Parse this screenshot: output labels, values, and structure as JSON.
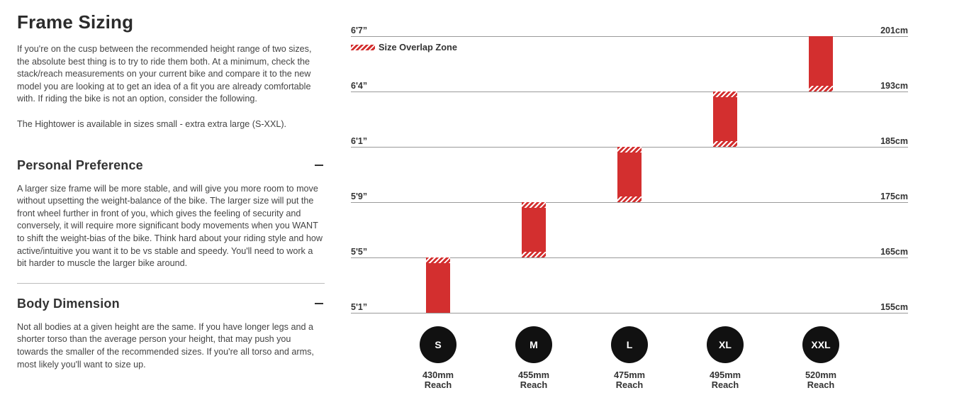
{
  "left": {
    "title": "Frame Sizing",
    "intro": "If you're on the cusp between the recommended height range of two sizes, the absolute best thing is to try to ride them both. At a minimum, check the stack/reach measurements on your current bike and compare it to the new model you are looking at to get an idea of a fit you are already comfortable with. If riding the bike is not an option, consider the following.",
    "availability": "The Hightower is available in sizes small - extra extra large (S-XXL).",
    "sections": [
      {
        "title": "Personal Preference",
        "body": "A larger size frame will be more stable, and will give you more room to move without upsetting the weight-balance of the bike. The larger size will put the front wheel further in front of you, which gives the feeling of security and conversely, it will require more significant body movements when you WANT to shift the weight-bias of the bike. Think hard about your riding style and how active/intuitive you want it to be vs stable and speedy. You'll need to work a bit harder to muscle the larger bike around."
      },
      {
        "title": "Body Dimension",
        "body": "Not all bodies at a given height are the same. If you have longer legs and a shorter torso than the average person your height, that may push you towards the smaller of the recommended sizes. If you're all torso and arms, most likely you'll want to size up."
      }
    ]
  },
  "chart_data": {
    "type": "bar",
    "legend": "Size Overlap Zone",
    "levels": [
      {
        "imperial": "6'7”",
        "cm": "201cm",
        "value": 201
      },
      {
        "imperial": "6'4”",
        "cm": "193cm",
        "value": 193
      },
      {
        "imperial": "6'1”",
        "cm": "185cm",
        "value": 185
      },
      {
        "imperial": "5'9”",
        "cm": "175cm",
        "value": 175
      },
      {
        "imperial": "5'5”",
        "cm": "165cm",
        "value": 165
      },
      {
        "imperial": "5'1”",
        "cm": "155cm",
        "value": 155
      }
    ],
    "sizes": [
      {
        "size": "S",
        "reach": "430mm",
        "reach_label": "Reach",
        "min_cm": 155,
        "max_cm": 165,
        "overlap_top": true,
        "overlap_bottom": false
      },
      {
        "size": "M",
        "reach": "455mm",
        "reach_label": "Reach",
        "min_cm": 165,
        "max_cm": 175,
        "overlap_top": true,
        "overlap_bottom": true
      },
      {
        "size": "L",
        "reach": "475mm",
        "reach_label": "Reach",
        "min_cm": 175,
        "max_cm": 185,
        "overlap_top": true,
        "overlap_bottom": true
      },
      {
        "size": "XL",
        "reach": "495mm",
        "reach_label": "Reach",
        "min_cm": 185,
        "max_cm": 193,
        "overlap_top": true,
        "overlap_bottom": true
      },
      {
        "size": "XXL",
        "reach": "520mm",
        "reach_label": "Reach",
        "min_cm": 193,
        "max_cm": 201,
        "overlap_top": false,
        "overlap_bottom": true
      }
    ],
    "colors": {
      "bar": "#d32f2f",
      "badge": "#111111"
    }
  }
}
